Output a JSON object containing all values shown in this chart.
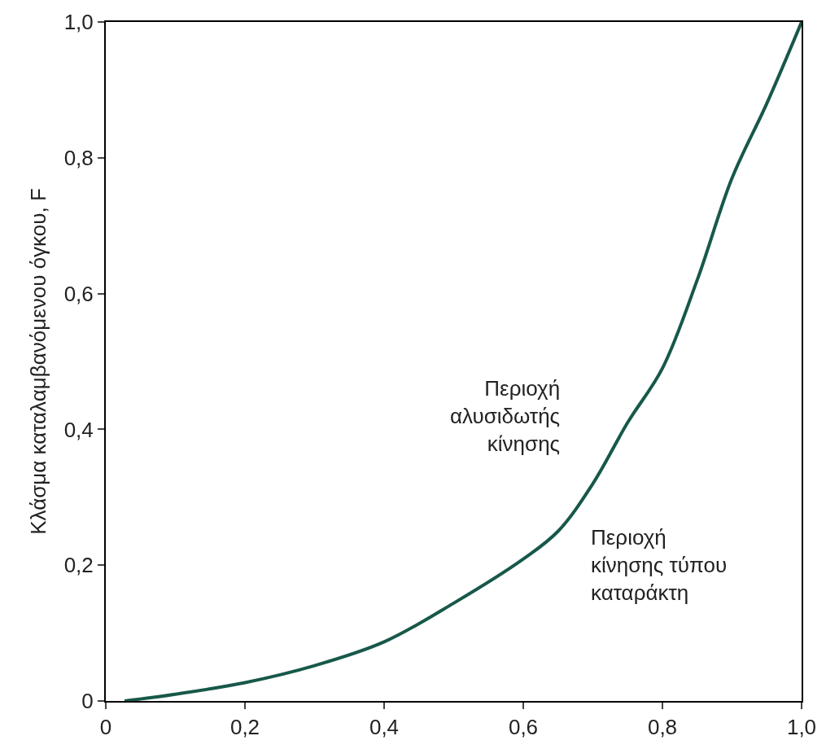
{
  "chart_data": {
    "type": "line",
    "ylabel": "Κλάσμα καταλαμβανόμενου όγκου, F",
    "x": [
      0.027,
      0.1,
      0.2,
      0.3,
      0.4,
      0.5,
      0.6,
      0.65,
      0.7,
      0.75,
      0.8,
      0.85,
      0.9,
      0.95,
      1.0
    ],
    "series": [
      {
        "color": "#17584a",
        "values": [
          0,
          0.01,
          0.027,
          0.052,
          0.087,
          0.144,
          0.209,
          0.25,
          0.32,
          0.41,
          0.49,
          0.62,
          0.77,
          0.88,
          1.0
        ]
      }
    ],
    "xlim": [
      0,
      1
    ],
    "ylim": [
      0,
      1
    ],
    "xticks": [
      0,
      {
        "value": 0.2,
        "label": "0,2"
      },
      {
        "value": 0.4,
        "label": "0,4"
      },
      {
        "value": 0.6,
        "label": "0,6"
      },
      {
        "value": 0.8,
        "label": "0,8"
      },
      {
        "value": 1,
        "label": "1,0"
      }
    ],
    "yticks": [
      0,
      {
        "value": 0.2,
        "label": "0,2"
      },
      {
        "value": 0.4,
        "label": "0,4"
      },
      {
        "value": 0.6,
        "label": "0,6"
      },
      {
        "value": 0.8,
        "label": "0,8"
      },
      {
        "value": 1,
        "label": "1,0"
      }
    ],
    "annotations": [
      "Περιοχή\nαλυσιδωτής\nκίνησης",
      "Περιοχή\nκίνησης τύπου\nκαταράκτη"
    ],
    "marker": "none",
    "line_style": "solid"
  }
}
